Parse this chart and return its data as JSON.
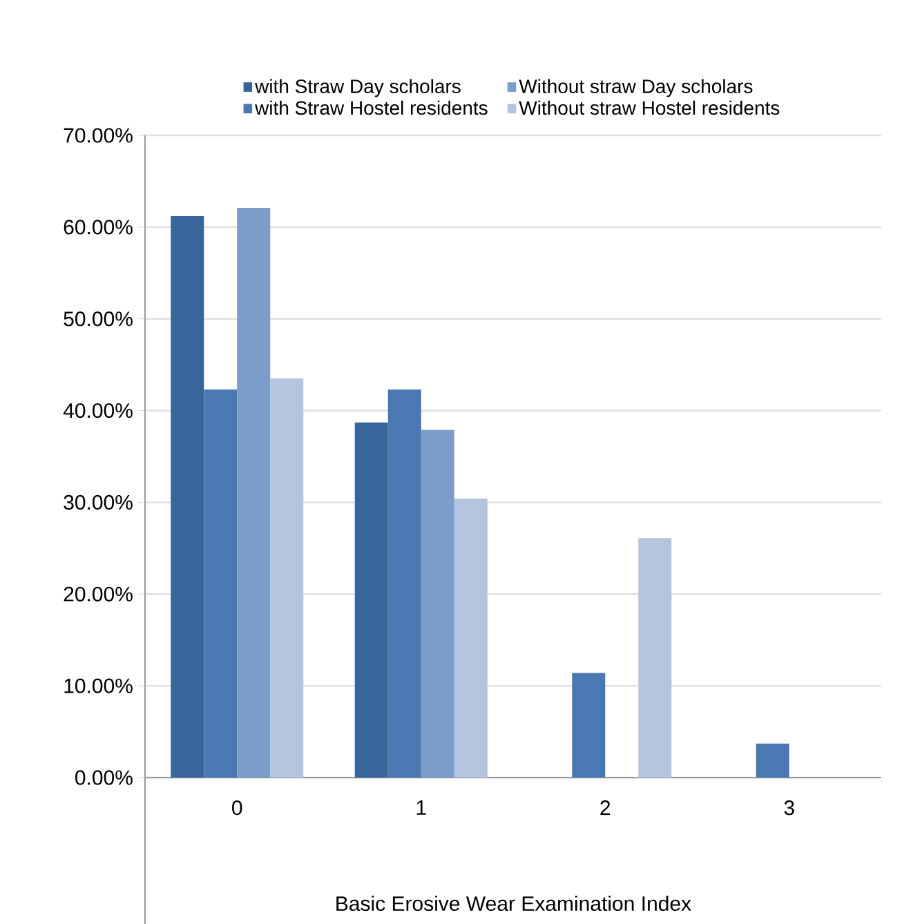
{
  "chart_data": {
    "type": "bar",
    "xlabel": "Basic Erosive Wear Examination Index",
    "categories": [
      "0",
      "1",
      "2",
      "3"
    ],
    "series": [
      {
        "name": "with Straw Day scholars",
        "color": "#38659a",
        "values": [
          61.2,
          38.7,
          0,
          0
        ]
      },
      {
        "name": "with Straw Hostel residents",
        "color": "#4a78b3",
        "values": [
          42.3,
          42.3,
          11.4,
          3.7
        ]
      },
      {
        "name": "Without straw Day scholars",
        "color": "#7b9bc9",
        "values": [
          62.1,
          37.9,
          0,
          0
        ]
      },
      {
        "name": "Without straw Hostel residents",
        "color": "#b4c3de",
        "values": [
          43.5,
          30.4,
          26.1,
          0
        ]
      }
    ],
    "ylim": [
      0,
      70
    ],
    "yticks": [
      {
        "value": 0,
        "label": "0.00%"
      },
      {
        "value": 10,
        "label": "10.00%"
      },
      {
        "value": 20,
        "label": "20.00%"
      },
      {
        "value": 30,
        "label": "30.00%"
      },
      {
        "value": 40,
        "label": "40.00%"
      },
      {
        "value": 50,
        "label": "50.00%"
      },
      {
        "value": 60,
        "label": "60.00%"
      },
      {
        "value": 70,
        "label": "70.00%"
      }
    ],
    "grid": "y",
    "legend": "top"
  }
}
